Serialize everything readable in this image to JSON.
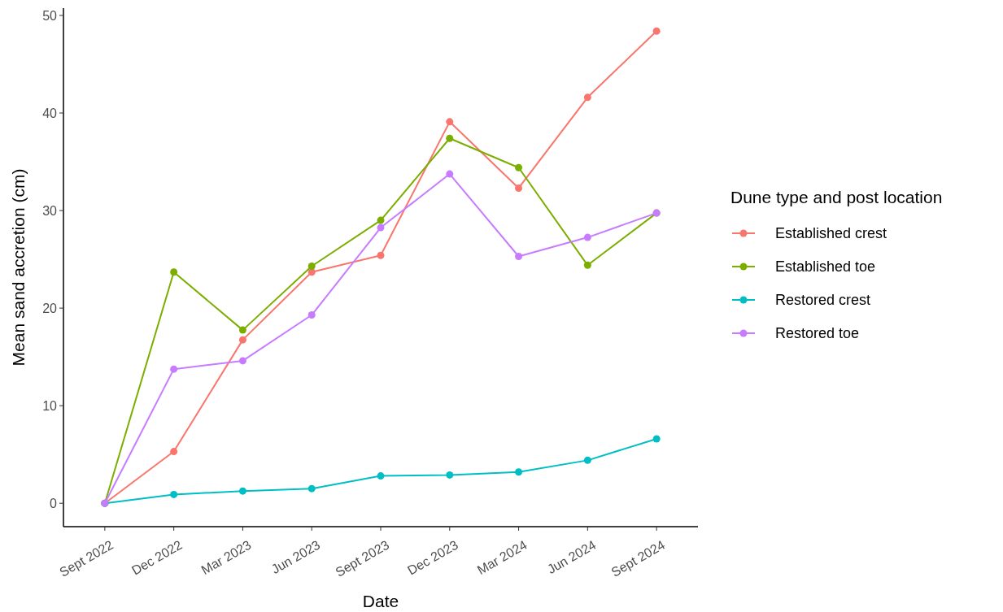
{
  "chart_data": {
    "type": "line",
    "xlabel": "Date",
    "ylabel": "Mean sand accretion (cm)",
    "legend_title": "Dune type and post location",
    "categories": [
      "Sept 2022",
      "Dec 2022",
      "Mar 2023",
      "Jun 2023",
      "Sept 2023",
      "Dec 2023",
      "Mar 2024",
      "Jun 2024",
      "Sept 2024"
    ],
    "series": [
      {
        "name": "Established crest",
        "color": "#f8766d",
        "values": [
          0,
          5.3,
          16.75,
          23.7,
          25.4,
          39.1,
          32.3,
          41.6,
          48.4
        ]
      },
      {
        "name": "Established toe",
        "color": "#7cae00",
        "values": [
          0,
          23.7,
          17.75,
          24.3,
          29.0,
          37.4,
          34.4,
          24.4,
          29.75
        ]
      },
      {
        "name": "Restored crest",
        "color": "#00bfc4",
        "values": [
          0,
          0.9,
          1.25,
          1.5,
          2.8,
          2.9,
          3.2,
          4.4,
          6.6
        ]
      },
      {
        "name": "Restored toe",
        "color": "#c77cff",
        "values": [
          0,
          13.75,
          14.6,
          19.3,
          28.25,
          33.75,
          25.3,
          27.25,
          29.75
        ]
      }
    ],
    "ylim": [
      -2.4,
      50.75
    ],
    "yticks": [
      0,
      10,
      20,
      30,
      40,
      50
    ],
    "grid": false,
    "legend": "right",
    "marker": "circle",
    "line_style": "solid"
  }
}
